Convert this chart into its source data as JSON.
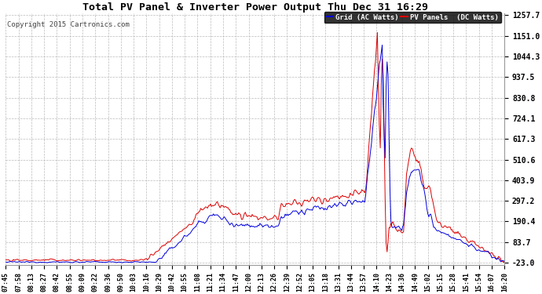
{
  "title": "Total PV Panel & Inverter Power Output Thu Dec 31 16:29",
  "copyright": "Copyright 2015 Cartronics.com",
  "legend_blue": "Grid (AC Watts)",
  "legend_red": "PV Panels  (DC Watts)",
  "yticks": [
    -23.0,
    83.7,
    190.4,
    297.2,
    403.9,
    510.6,
    617.3,
    724.1,
    830.8,
    937.5,
    1044.3,
    1151.0,
    1257.7
  ],
  "ymin": -23.0,
  "ymax": 1257.7,
  "bg_color": "#ffffff",
  "plot_bg": "#ffffff",
  "grid_color": "#bbbbbb",
  "blue_color": "#0000dd",
  "red_color": "#dd0000",
  "title_fontsize": 10,
  "xtick_labels": [
    "07:45",
    "07:58",
    "08:13",
    "08:27",
    "08:42",
    "08:55",
    "09:09",
    "09:22",
    "09:36",
    "09:50",
    "10:03",
    "10:16",
    "10:29",
    "10:42",
    "10:55",
    "11:08",
    "11:21",
    "11:34",
    "11:47",
    "12:00",
    "12:13",
    "12:26",
    "12:39",
    "12:52",
    "13:05",
    "13:18",
    "13:31",
    "13:44",
    "13:57",
    "14:10",
    "14:23",
    "14:36",
    "14:49",
    "15:02",
    "15:15",
    "15:28",
    "15:41",
    "15:54",
    "16:07",
    "16:20"
  ]
}
